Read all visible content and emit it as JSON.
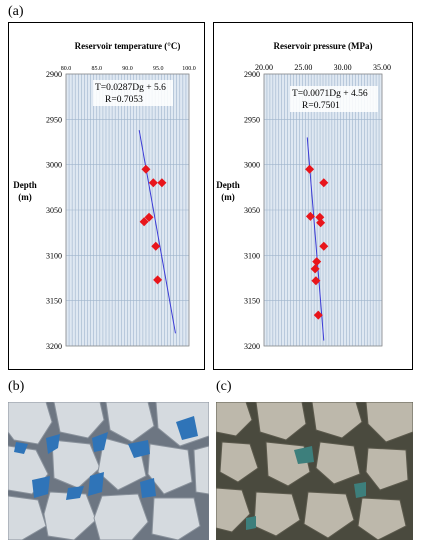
{
  "panels": {
    "a": "(a)",
    "b": "(b)",
    "c": "(c)"
  },
  "chart_data": [
    {
      "type": "scatter",
      "title": "Reservoir temperature (°C)",
      "ylabel": "Depth\n(m)",
      "xlabel": "",
      "xlim": [
        80.0,
        100.0
      ],
      "ylim": [
        2900,
        3200
      ],
      "xticks": [
        "80.0",
        "85.0",
        "90.0",
        "95.0",
        "100.0"
      ],
      "yticks": [
        "2900",
        "2950",
        "3000",
        "3050",
        "3100",
        "3150",
        "3200"
      ],
      "equation": "T=0.0287Dg + 5.6",
      "r_value": "R=0.7053",
      "points": [
        {
          "x": 93.0,
          "y": 3005
        },
        {
          "x": 94.2,
          "y": 3020
        },
        {
          "x": 95.6,
          "y": 3020
        },
        {
          "x": 93.5,
          "y": 3058
        },
        {
          "x": 92.7,
          "y": 3063
        },
        {
          "x": 94.6,
          "y": 3090
        },
        {
          "x": 94.9,
          "y": 3127
        }
      ],
      "trendline": [
        {
          "x": 91.9,
          "y": 2962
        },
        {
          "x": 97.8,
          "y": 3186
        }
      ],
      "grid": true,
      "marker_color": "#e8151b",
      "line_color": "#3b3bd6"
    },
    {
      "type": "scatter",
      "title": "Reservoir pressure (MPa)",
      "ylabel": "Depth\n(m)",
      "xlabel": "",
      "xlim": [
        20.0,
        35.0
      ],
      "ylim": [
        2900,
        3200
      ],
      "xticks": [
        "20.00",
        "25.00",
        "30.00",
        "35.00"
      ],
      "yticks": [
        "2900",
        "2950",
        "3000",
        "3050",
        "3100",
        "3150",
        "3200"
      ],
      "equation": "T=0.0071Dg + 4.56",
      "r_value": "R=0.7501",
      "points": [
        {
          "x": 25.8,
          "y": 3005
        },
        {
          "x": 27.6,
          "y": 3020
        },
        {
          "x": 25.9,
          "y": 3057
        },
        {
          "x": 27.1,
          "y": 3058
        },
        {
          "x": 27.2,
          "y": 3064
        },
        {
          "x": 27.6,
          "y": 3090
        },
        {
          "x": 26.7,
          "y": 3107
        },
        {
          "x": 26.5,
          "y": 3115
        },
        {
          "x": 26.6,
          "y": 3128
        },
        {
          "x": 26.9,
          "y": 3166
        }
      ],
      "trendline": [
        {
          "x": 25.5,
          "y": 2970
        },
        {
          "x": 27.6,
          "y": 3194
        }
      ],
      "grid": true,
      "marker_color": "#e8151b",
      "line_color": "#3b3bd6"
    }
  ],
  "photos": {
    "b": {
      "description_colors": [
        "#c9d0d6",
        "#2f74b8",
        "#6b7480"
      ]
    },
    "c": {
      "description_colors": [
        "#b7b2a5",
        "#4b4a3c",
        "#3d7f7c"
      ]
    }
  }
}
